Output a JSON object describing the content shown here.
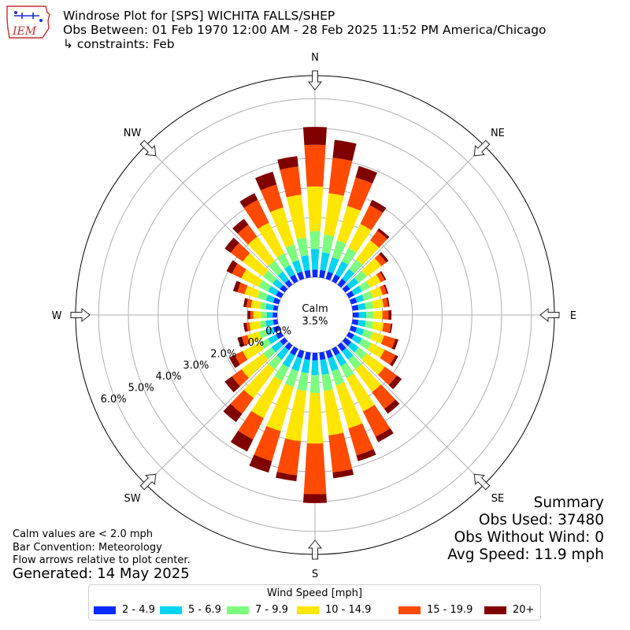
{
  "header": {
    "title_line1": "Windrose Plot for [SPS] WICHITA FALLS/SHEP",
    "title_line2": "Obs Between: 01 Feb 1970 12:00 AM - 28 Feb 2025 11:52 PM America/Chicago",
    "title_line3": "↳ constraints: Feb",
    "logo_text": "IEM"
  },
  "summary": {
    "title": "Summary",
    "obs_used": "Obs Used: 37480",
    "obs_without_wind": "Obs Without Wind: 0",
    "avg_speed": "Avg Speed: 11.9 mph"
  },
  "notes": {
    "calm_note": "Calm values are < 2.0 mph",
    "bar_convention": "Bar Convention: Meteorology",
    "flow_arrows": "Flow arrows relative to plot center.",
    "generated": "Generated: 14 May 2025"
  },
  "colors": {
    "bins": [
      "#0a2bff",
      "#00d4f0",
      "#7dfd7f",
      "#ffe600",
      "#ff4a00",
      "#800000"
    ],
    "grid": "#b0b0b0"
  },
  "chart_data": {
    "type": "windrose",
    "center_label": "Calm",
    "calm_percent": "3.5%",
    "direction_labels": [
      "N",
      "NE",
      "E",
      "SE",
      "S",
      "SW",
      "W",
      "NW"
    ],
    "radial_ticks": [
      "0.0%",
      "1.0%",
      "2.0%",
      "3.0%",
      "4.0%",
      "5.0%",
      "6.0%"
    ],
    "legend_title": "Wind Speed [mph]",
    "speed_bins": [
      "2 - 4.9",
      "5 - 6.9",
      "7 - 9.9",
      "10 - 14.9",
      "15 - 19.9",
      "20+"
    ],
    "directions_deg": [
      0,
      10,
      20,
      30,
      40,
      50,
      60,
      70,
      80,
      90,
      100,
      110,
      120,
      130,
      140,
      150,
      160,
      170,
      180,
      190,
      200,
      210,
      220,
      230,
      240,
      250,
      260,
      270,
      280,
      290,
      300,
      310,
      320,
      330,
      340,
      350
    ],
    "cumulative_percent": [
      [
        0.25,
        0.95,
        1.55,
        3.05,
        4.45,
        5.05
      ],
      [
        0.25,
        0.85,
        1.45,
        2.85,
        4.05,
        4.65
      ],
      [
        0.25,
        0.75,
        1.35,
        2.55,
        3.55,
        3.95
      ],
      [
        0.25,
        0.75,
        1.25,
        2.15,
        2.85,
        3.05
      ],
      [
        0.25,
        0.65,
        1.05,
        1.85,
        2.25,
        2.35
      ],
      [
        0.2,
        0.55,
        0.9,
        1.5,
        1.7,
        1.8
      ],
      [
        0.2,
        0.5,
        0.8,
        1.2,
        1.35,
        1.4
      ],
      [
        0.2,
        0.45,
        0.75,
        1.1,
        1.25,
        1.3
      ],
      [
        0.2,
        0.45,
        0.7,
        1.05,
        1.2,
        1.25
      ],
      [
        0.2,
        0.45,
        0.7,
        1.0,
        1.2,
        1.3
      ],
      [
        0.2,
        0.45,
        0.7,
        1.05,
        1.3,
        1.35
      ],
      [
        0.2,
        0.45,
        0.75,
        1.15,
        1.55,
        1.65
      ],
      [
        0.2,
        0.5,
        0.85,
        1.35,
        1.75,
        1.85
      ],
      [
        0.25,
        0.55,
        0.9,
        1.65,
        2.15,
        2.35
      ],
      [
        0.25,
        0.6,
        1.0,
        1.95,
        2.65,
        2.85
      ],
      [
        0.25,
        0.65,
        1.1,
        2.35,
        3.3,
        3.5
      ],
      [
        0.25,
        0.7,
        1.2,
        2.7,
        3.65,
        3.85
      ],
      [
        0.25,
        0.75,
        1.3,
        2.8,
        4.05,
        4.25
      ],
      [
        0.25,
        0.75,
        1.35,
        3.05,
        4.75,
        5.05
      ],
      [
        0.25,
        0.7,
        1.3,
        3.0,
        4.15,
        4.35
      ],
      [
        0.25,
        0.7,
        1.25,
        2.8,
        3.85,
        4.25
      ],
      [
        0.25,
        0.7,
        1.2,
        2.6,
        3.4,
        3.85
      ],
      [
        0.2,
        0.6,
        1.0,
        2.2,
        2.85,
        3.2
      ],
      [
        0.2,
        0.55,
        0.9,
        1.8,
        2.2,
        2.5
      ],
      [
        0.2,
        0.5,
        0.8,
        1.45,
        1.75,
        1.95
      ],
      [
        0.2,
        0.45,
        0.7,
        1.1,
        1.3,
        1.45
      ],
      [
        0.15,
        0.4,
        0.6,
        0.95,
        1.05,
        1.15
      ],
      [
        0.15,
        0.35,
        0.55,
        0.8,
        0.9,
        1.0
      ],
      [
        0.15,
        0.4,
        0.6,
        0.9,
        1.05,
        1.15
      ],
      [
        0.2,
        0.45,
        0.75,
        1.2,
        1.45,
        1.6
      ],
      [
        0.2,
        0.5,
        0.85,
        1.5,
        1.85,
        2.05
      ],
      [
        0.2,
        0.5,
        0.9,
        1.75,
        2.25,
        2.5
      ],
      [
        0.2,
        0.55,
        1.0,
        2.0,
        2.5,
        2.75
      ],
      [
        0.25,
        0.6,
        1.05,
        2.2,
        3.05,
        3.3
      ],
      [
        0.25,
        0.65,
        1.2,
        2.5,
        3.3,
        3.75
      ],
      [
        0.25,
        0.75,
        1.35,
        2.8,
        3.75,
        4.1
      ]
    ]
  }
}
